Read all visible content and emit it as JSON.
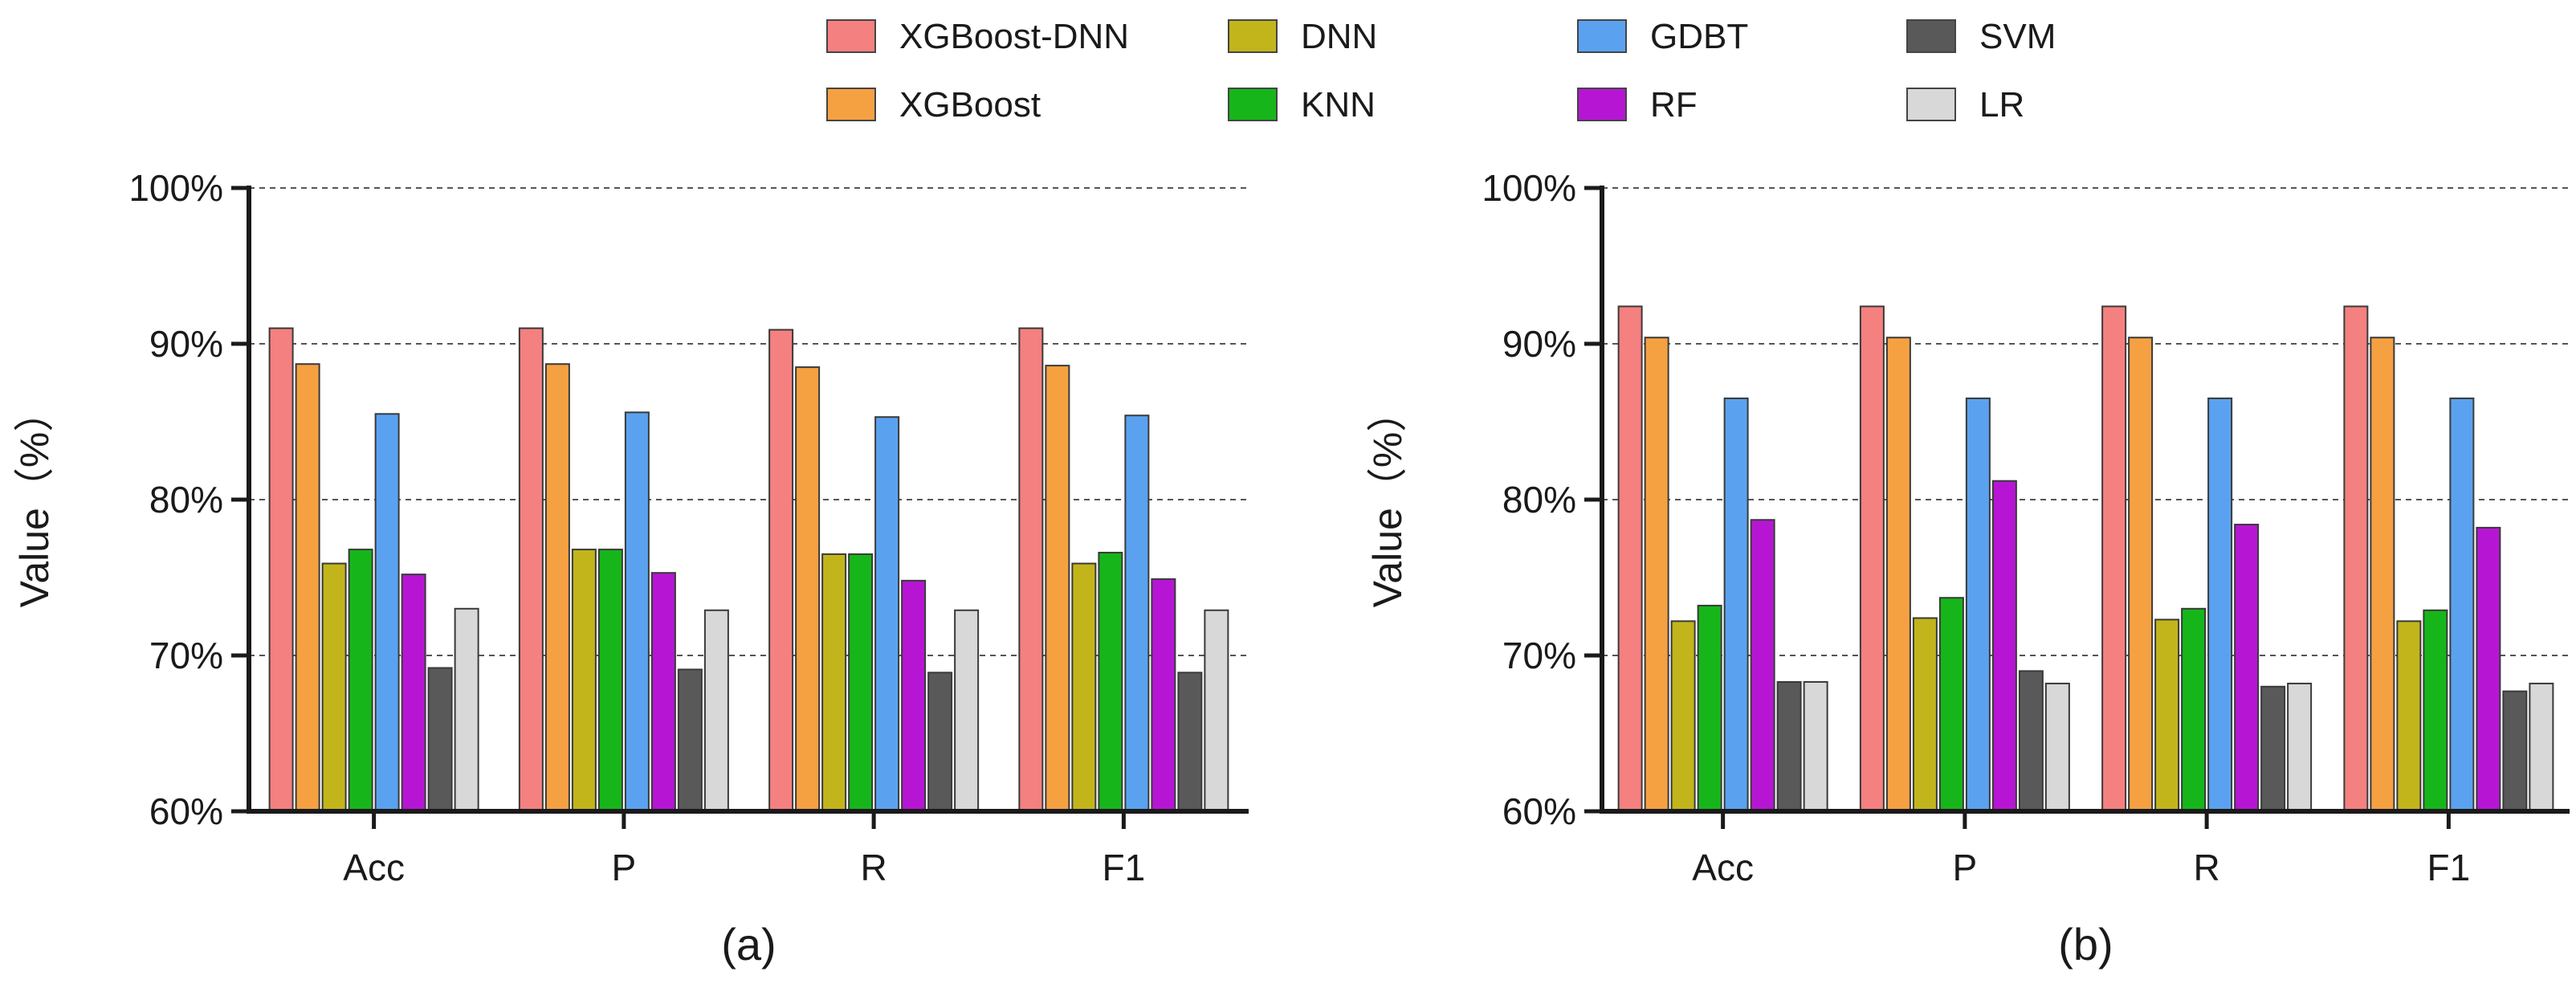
{
  "legend": {
    "items": [
      {
        "name": "XGBoost-DNN",
        "color": "#f58080"
      },
      {
        "name": "XGBoost",
        "color": "#f5a142"
      },
      {
        "name": "DNN",
        "color": "#c2b51c"
      },
      {
        "name": "KNN",
        "color": "#16b61a"
      },
      {
        "name": "GDBT",
        "color": "#5aa2f0"
      },
      {
        "name": "RF",
        "color": "#b616d3"
      },
      {
        "name": "SVM",
        "color": "#595959"
      },
      {
        "name": "LR",
        "color": "#d8d8d8"
      }
    ]
  },
  "chart_data": [
    {
      "type": "bar",
      "title": "(a)",
      "xlabel": "",
      "ylabel": "Value（%）",
      "ylim": [
        60,
        100
      ],
      "yticks": [
        "60%",
        "70%",
        "80%",
        "90%",
        "100%"
      ],
      "grid": true,
      "categories": [
        "Acc",
        "P",
        "R",
        "F1"
      ],
      "series": [
        {
          "name": "XGBoost-DNN",
          "values": [
            91.0,
            91.0,
            90.9,
            91.0
          ]
        },
        {
          "name": "XGBoost",
          "values": [
            88.7,
            88.7,
            88.5,
            88.6
          ]
        },
        {
          "name": "DNN",
          "values": [
            75.9,
            76.8,
            76.5,
            75.9
          ]
        },
        {
          "name": "KNN",
          "values": [
            76.8,
            76.8,
            76.5,
            76.6
          ]
        },
        {
          "name": "GDBT",
          "values": [
            85.5,
            85.6,
            85.3,
            85.4
          ]
        },
        {
          "name": "RF",
          "values": [
            75.2,
            75.3,
            74.8,
            74.9
          ]
        },
        {
          "name": "SVM",
          "values": [
            69.2,
            69.1,
            68.9,
            68.9
          ]
        },
        {
          "name": "LR",
          "values": [
            73.0,
            72.9,
            72.9,
            72.9
          ]
        }
      ]
    },
    {
      "type": "bar",
      "title": "(b)",
      "xlabel": "",
      "ylabel": "Value（%）",
      "ylim": [
        60,
        100
      ],
      "yticks": [
        "60%",
        "70%",
        "80%",
        "90%",
        "100%"
      ],
      "grid": true,
      "categories": [
        "Acc",
        "P",
        "R",
        "F1"
      ],
      "series": [
        {
          "name": "XGBoost-DNN",
          "values": [
            92.4,
            92.4,
            92.4,
            92.4
          ]
        },
        {
          "name": "XGBoost",
          "values": [
            90.4,
            90.4,
            90.4,
            90.4
          ]
        },
        {
          "name": "DNN",
          "values": [
            72.2,
            72.4,
            72.3,
            72.2
          ]
        },
        {
          "name": "KNN",
          "values": [
            73.2,
            73.7,
            73.0,
            72.9
          ]
        },
        {
          "name": "GDBT",
          "values": [
            86.5,
            86.5,
            86.5,
            86.5
          ]
        },
        {
          "name": "RF",
          "values": [
            78.7,
            81.2,
            78.4,
            78.2
          ]
        },
        {
          "name": "SVM",
          "values": [
            68.3,
            69.0,
            68.0,
            67.7
          ]
        },
        {
          "name": "LR",
          "values": [
            68.3,
            68.2,
            68.2,
            68.2
          ]
        }
      ]
    }
  ]
}
